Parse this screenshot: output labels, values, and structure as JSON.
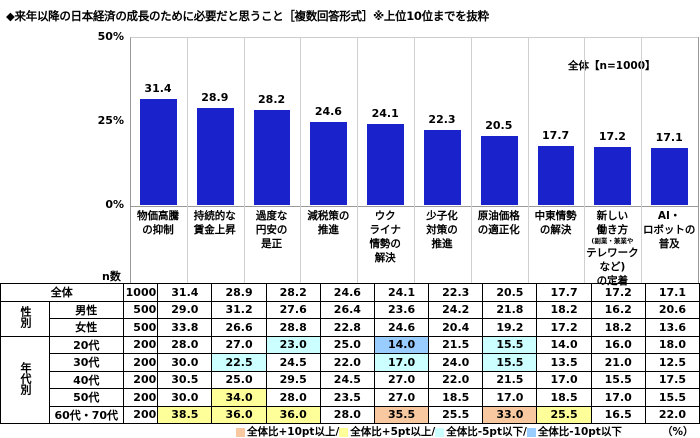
{
  "title": "◆来年以降の日本経済の成長のために必要だと思うこと［複数回答形式］※上位10位までを抜粋",
  "chart_data": {
    "type": "bar",
    "categories": [
      "物価高騰の抑制",
      "持続的な賃金上昇",
      "過度な円安の是正",
      "減税策の推進",
      "ウクライナ情勢の解決",
      "少子化対策の推進",
      "原油価格の適正化",
      "中東情勢の解決",
      "新しい働き方（副業・兼業やテレワークなど）の定着",
      "AI・ロボットの普及"
    ],
    "category_lines": [
      [
        "物価高騰",
        "の抑制"
      ],
      [
        "持続的な",
        "賃金上昇"
      ],
      [
        "過度な",
        "円安の",
        "是正"
      ],
      [
        "減税策の",
        "推進"
      ],
      [
        "ウク",
        "ライナ",
        "情勢の",
        "解決"
      ],
      [
        "少子化",
        "対策の",
        "推進"
      ],
      [
        "原油価格",
        "の適正化"
      ],
      [
        "中東情勢",
        "の解決"
      ],
      [
        "新しい",
        "働き方",
        "(副業・兼業や",
        "テレワークなど)",
        "の定着"
      ],
      [
        "AI・",
        "ロボットの",
        "普及"
      ]
    ],
    "series": [
      {
        "name": "全体【n=1000】",
        "values": [
          31.4,
          28.9,
          28.2,
          24.6,
          24.1,
          22.3,
          20.5,
          17.7,
          17.2,
          17.1
        ]
      }
    ],
    "yticks": [
      "50%",
      "25%",
      "0%"
    ],
    "ylim": [
      0,
      50
    ],
    "legend": "top-right",
    "bar_color": "#1a22cc"
  },
  "table": {
    "n_header": "n数",
    "rows": [
      {
        "group": "",
        "label": "全体",
        "n": "1000",
        "values": [
          "31.4",
          "28.9",
          "28.2",
          "24.6",
          "24.1",
          "22.3",
          "20.5",
          "17.7",
          "17.2",
          "17.1"
        ],
        "hl": [
          "",
          "",
          "",
          "",
          "",
          "",
          "",
          "",
          "",
          ""
        ]
      },
      {
        "group": "性別",
        "label": "男性",
        "n": "500",
        "values": [
          "29.0",
          "31.2",
          "27.6",
          "26.4",
          "23.6",
          "24.2",
          "21.8",
          "18.2",
          "16.2",
          "20.6"
        ],
        "hl": [
          "",
          "",
          "",
          "",
          "",
          "",
          "",
          "",
          "",
          ""
        ]
      },
      {
        "group": "性別",
        "label": "女性",
        "n": "500",
        "values": [
          "33.8",
          "26.6",
          "28.8",
          "22.8",
          "24.6",
          "20.4",
          "19.2",
          "17.2",
          "18.2",
          "13.6"
        ],
        "hl": [
          "",
          "",
          "",
          "",
          "",
          "",
          "",
          "",
          "",
          ""
        ]
      },
      {
        "group": "年代別",
        "label": "20代",
        "n": "200",
        "values": [
          "28.0",
          "27.0",
          "23.0",
          "25.0",
          "14.0",
          "21.5",
          "15.5",
          "14.0",
          "16.0",
          "18.0"
        ],
        "hl": [
          "",
          "",
          "-5",
          "",
          "-10",
          "",
          "-5",
          "",
          "",
          ""
        ]
      },
      {
        "group": "年代別",
        "label": "30代",
        "n": "200",
        "values": [
          "30.0",
          "22.5",
          "24.5",
          "22.0",
          "17.0",
          "24.0",
          "15.5",
          "13.5",
          "21.0",
          "12.5"
        ],
        "hl": [
          "",
          "-5",
          "",
          "",
          "-5",
          "",
          "-5",
          "",
          "",
          ""
        ]
      },
      {
        "group": "年代別",
        "label": "40代",
        "n": "200",
        "values": [
          "30.5",
          "25.0",
          "29.5",
          "24.5",
          "27.0",
          "22.0",
          "21.5",
          "17.0",
          "15.5",
          "17.5"
        ],
        "hl": [
          "",
          "",
          "",
          "",
          "",
          "",
          "",
          "",
          "",
          ""
        ]
      },
      {
        "group": "年代別",
        "label": "50代",
        "n": "200",
        "values": [
          "30.0",
          "34.0",
          "28.0",
          "23.5",
          "27.0",
          "18.5",
          "17.0",
          "18.5",
          "17.0",
          "15.5"
        ],
        "hl": [
          "",
          "+5",
          "",
          "",
          "",
          "",
          "",
          "",
          "",
          ""
        ]
      },
      {
        "group": "年代別",
        "label": "60代・70代",
        "n": "200",
        "values": [
          "38.5",
          "36.0",
          "36.0",
          "28.0",
          "35.5",
          "25.5",
          "33.0",
          "25.5",
          "16.5",
          "22.0"
        ],
        "hl": [
          "+5",
          "+5",
          "+5",
          "",
          "+10",
          "",
          "+10",
          "+5",
          "",
          ""
        ]
      }
    ],
    "group_labels": [
      "性別",
      "年代別"
    ]
  },
  "highlight_legend": [
    {
      "key": "+10",
      "label": "全体比+10pt以上/",
      "color": "#f8c8a0"
    },
    {
      "key": "+5",
      "label": "全体比+5pt以上/",
      "color": "#ffff99"
    },
    {
      "key": "-5",
      "label": "全体比-5pt以下/",
      "color": "#ccffff"
    },
    {
      "key": "-10",
      "label": "全体比-10pt以下",
      "color": "#99ccff"
    }
  ],
  "unit": "（%）"
}
